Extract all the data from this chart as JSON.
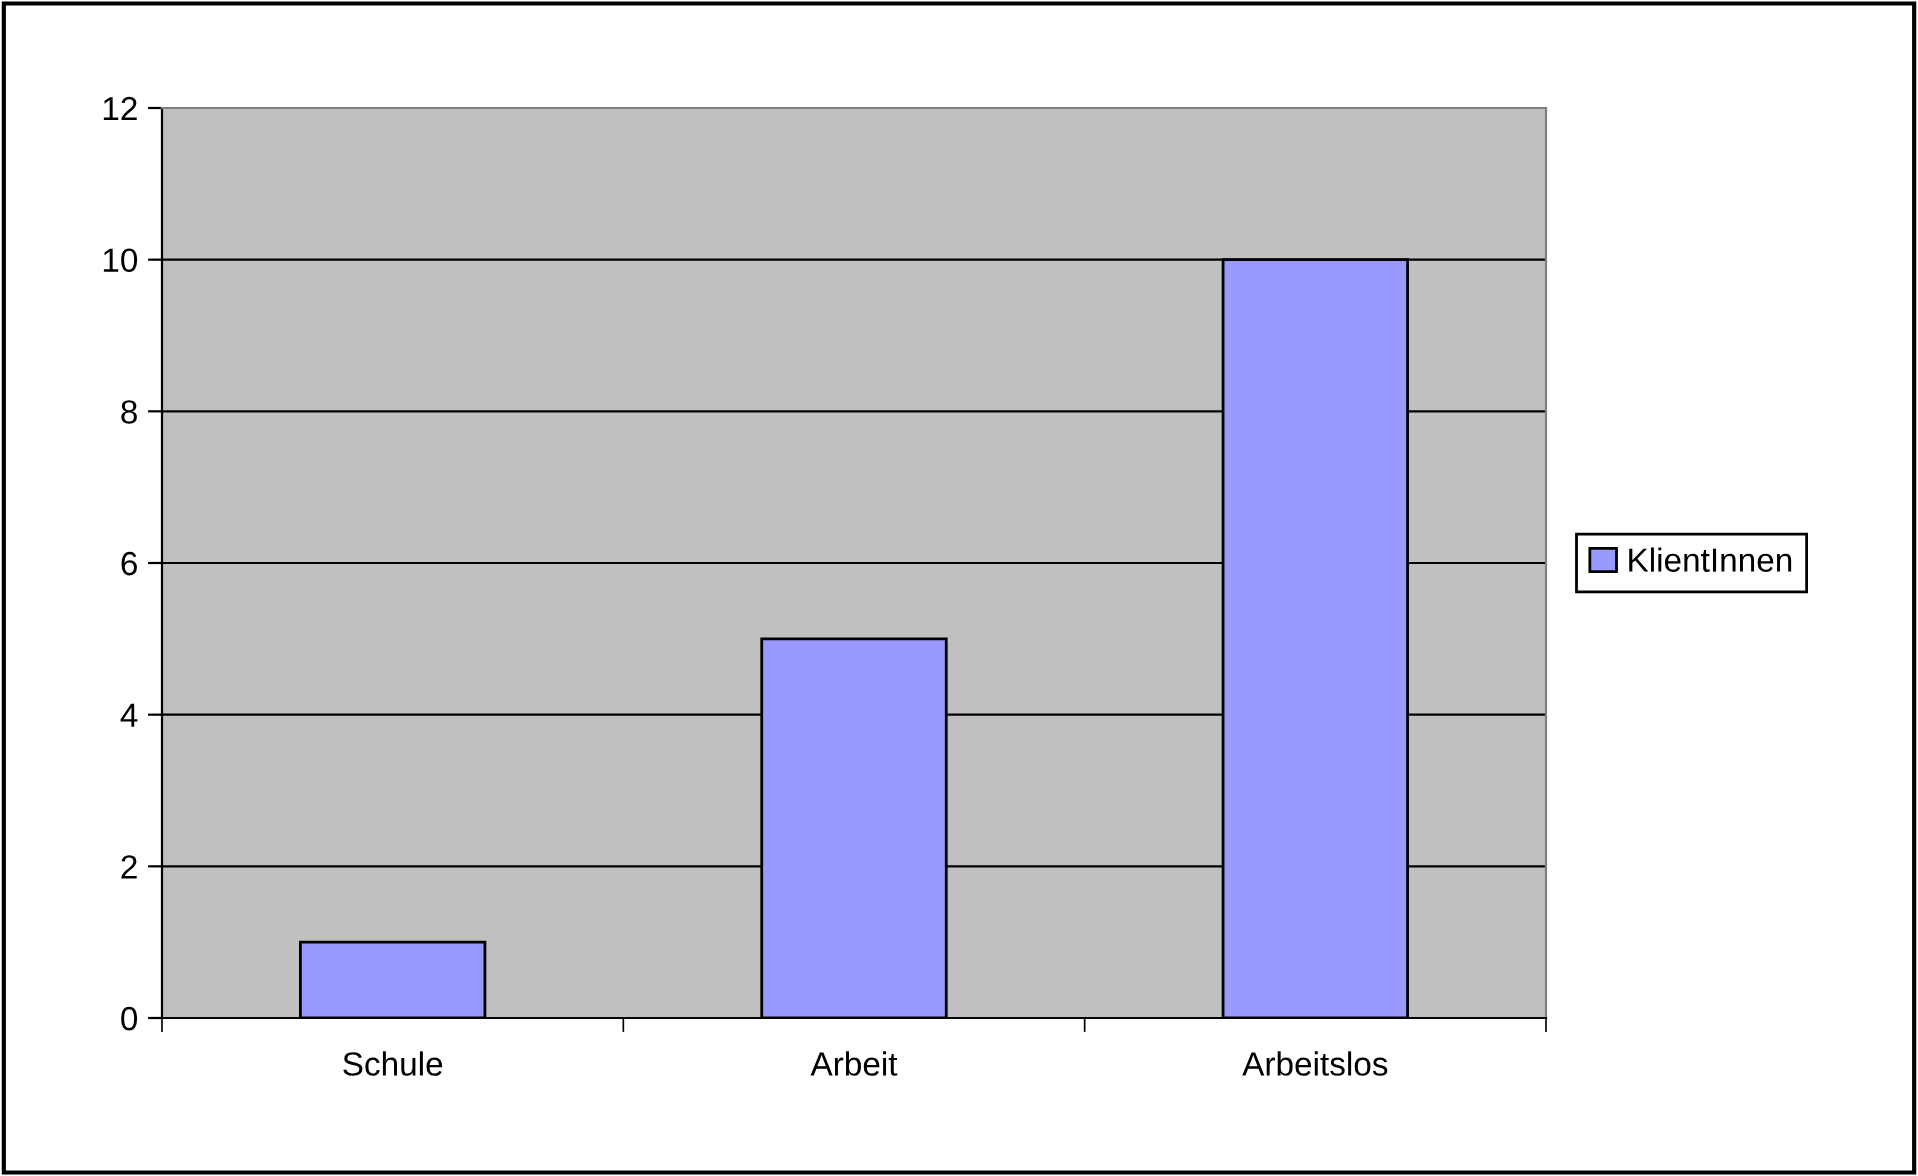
{
  "chart_data": {
    "type": "bar",
    "categories": [
      "Schule",
      "Arbeit",
      "Arbeitslos"
    ],
    "series": [
      {
        "name": "KlientInnen",
        "color": "#9999ff",
        "values": [
          1,
          5,
          10
        ]
      }
    ],
    "ylim": [
      0,
      12
    ],
    "yticks": [
      0,
      2,
      4,
      6,
      8,
      10,
      12
    ],
    "grid": "y",
    "legend": "right"
  }
}
